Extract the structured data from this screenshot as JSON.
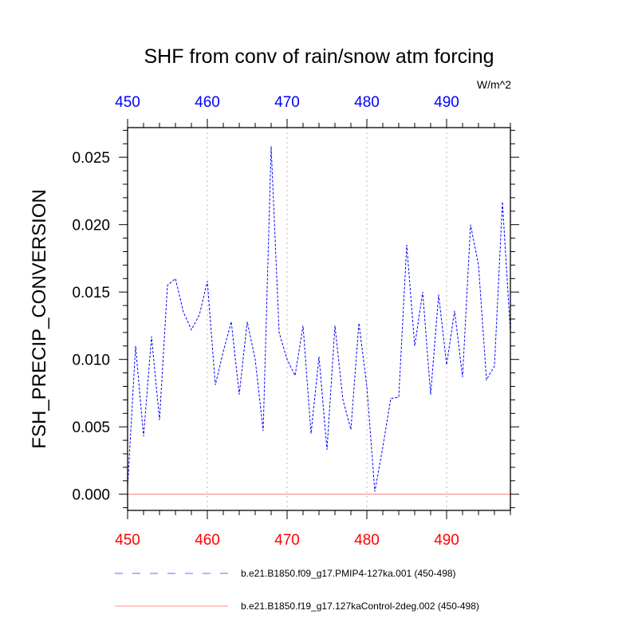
{
  "chart_data": {
    "type": "line",
    "title": "SHF from conv of rain/snow atm forcing",
    "units": "W/m^2",
    "ylabel": "FSH_PRECIP_CONVERSION",
    "xlabel": "",
    "xlim": [
      450,
      498
    ],
    "ylim": [
      -0.0012,
      0.0272
    ],
    "x_ticks": [
      450,
      460,
      470,
      480,
      490
    ],
    "x_tick_labels": [
      "450",
      "460",
      "470",
      "480",
      "490"
    ],
    "y_ticks": [
      0.0,
      0.005,
      0.01,
      0.015,
      0.02,
      0.025
    ],
    "y_tick_labels": [
      "0.000",
      "0.005",
      "0.010",
      "0.015",
      "0.020",
      "0.025"
    ],
    "grid": "vertical-dotted",
    "x": [
      450,
      451,
      452,
      453,
      454,
      455,
      456,
      457,
      458,
      459,
      460,
      461,
      462,
      463,
      464,
      465,
      466,
      467,
      468,
      469,
      470,
      471,
      472,
      473,
      474,
      475,
      476,
      477,
      478,
      479,
      480,
      481,
      482,
      483,
      484,
      485,
      486,
      487,
      488,
      489,
      490,
      491,
      492,
      493,
      494,
      495,
      496,
      497,
      498
    ],
    "series": [
      {
        "name": "b.e21.B1850.f09_g17.PMIP4-127ka.001 (450-498)",
        "color": "#0000ff",
        "style": "dashed",
        "values": [
          0.0005,
          0.011,
          0.0043,
          0.0117,
          0.0055,
          0.0155,
          0.016,
          0.0135,
          0.0122,
          0.0133,
          0.0158,
          0.0081,
          0.0106,
          0.0128,
          0.0074,
          0.0128,
          0.01,
          0.0047,
          0.0258,
          0.012,
          0.01,
          0.0088,
          0.0125,
          0.0045,
          0.0102,
          0.0033,
          0.0125,
          0.007,
          0.0048,
          0.0127,
          0.008,
          0.0002,
          0.0035,
          0.0071,
          0.0072,
          0.0185,
          0.011,
          0.015,
          0.0074,
          0.0148,
          0.0096,
          0.0136,
          0.0087,
          0.02,
          0.017,
          0.0085,
          0.0095,
          0.0217,
          0.012
        ]
      },
      {
        "name": "b.e21.B1850.f19_g17.127kaControl-2deg.002 (450-498)",
        "color": "#ff0000",
        "style": "solid",
        "values": [
          0.0,
          0.0,
          0.0,
          0.0,
          0.0,
          0.0,
          0.0,
          0.0,
          0.0,
          0.0,
          0.0,
          0.0,
          0.0,
          0.0,
          0.0,
          0.0,
          0.0,
          0.0,
          0.0,
          0.0,
          0.0,
          0.0,
          0.0,
          0.0,
          0.0,
          0.0,
          0.0,
          0.0,
          0.0,
          0.0,
          0.0,
          0.0,
          0.0,
          0.0,
          0.0,
          0.0,
          0.0,
          0.0,
          0.0,
          0.0,
          0.0,
          0.0,
          0.0,
          0.0,
          0.0,
          0.0,
          0.0,
          0.0,
          0.0
        ]
      }
    ]
  }
}
